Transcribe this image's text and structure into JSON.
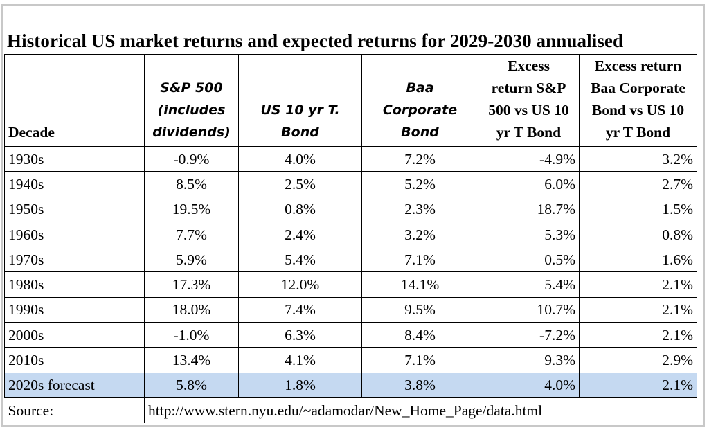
{
  "title": "Historical US market returns and expected returns for 2029-2030 annualised",
  "headers": {
    "decade": "Decade",
    "sp500": [
      "S&P 500",
      "(includes",
      "dividends)"
    ],
    "tbond": [
      "US 10 yr T.",
      "Bond"
    ],
    "baa": [
      "Baa",
      "Corporate",
      "Bond"
    ],
    "excess_sp": [
      "Excess",
      "return S&P",
      "500 vs US 10",
      "yr T Bond"
    ],
    "excess_baa": [
      "Excess return",
      "Baa Corporate",
      "Bond vs US 10",
      "yr T Bond"
    ]
  },
  "rows": [
    {
      "decade": "1930s",
      "sp500": "-0.9%",
      "tbond": "4.0%",
      "baa": "7.2%",
      "excess_sp": "-4.9%",
      "excess_baa": "3.2%"
    },
    {
      "decade": "1940s",
      "sp500": "8.5%",
      "tbond": "2.5%",
      "baa": "5.2%",
      "excess_sp": "6.0%",
      "excess_baa": "2.7%"
    },
    {
      "decade": "1950s",
      "sp500": "19.5%",
      "tbond": "0.8%",
      "baa": "2.3%",
      "excess_sp": "18.7%",
      "excess_baa": "1.5%"
    },
    {
      "decade": "1960s",
      "sp500": "7.7%",
      "tbond": "2.4%",
      "baa": "3.2%",
      "excess_sp": "5.3%",
      "excess_baa": "0.8%"
    },
    {
      "decade": "1970s",
      "sp500": "5.9%",
      "tbond": "5.4%",
      "baa": "7.1%",
      "excess_sp": "0.5%",
      "excess_baa": "1.6%"
    },
    {
      "decade": "1980s",
      "sp500": "17.3%",
      "tbond": "12.0%",
      "baa": "14.1%",
      "excess_sp": "5.4%",
      "excess_baa": "2.1%"
    },
    {
      "decade": "1990s",
      "sp500": "18.0%",
      "tbond": "7.4%",
      "baa": "9.5%",
      "excess_sp": "10.7%",
      "excess_baa": "2.1%"
    },
    {
      "decade": "2000s",
      "sp500": "-1.0%",
      "tbond": "6.3%",
      "baa": "8.4%",
      "excess_sp": "-7.2%",
      "excess_baa": "2.1%"
    },
    {
      "decade": "2010s",
      "sp500": "13.4%",
      "tbond": "4.1%",
      "baa": "7.1%",
      "excess_sp": "9.3%",
      "excess_baa": "2.9%"
    },
    {
      "decade": "2020s forecast",
      "sp500": "5.8%",
      "tbond": "1.8%",
      "baa": "3.8%",
      "excess_sp": "4.0%",
      "excess_baa": "2.1%"
    }
  ],
  "source": {
    "label": "Source:",
    "url": "http://www.stern.nyu.edu/~adamodar/New_Home_Page/data.html"
  },
  "colors": {
    "forecast_highlight": "#c5d9f1"
  }
}
